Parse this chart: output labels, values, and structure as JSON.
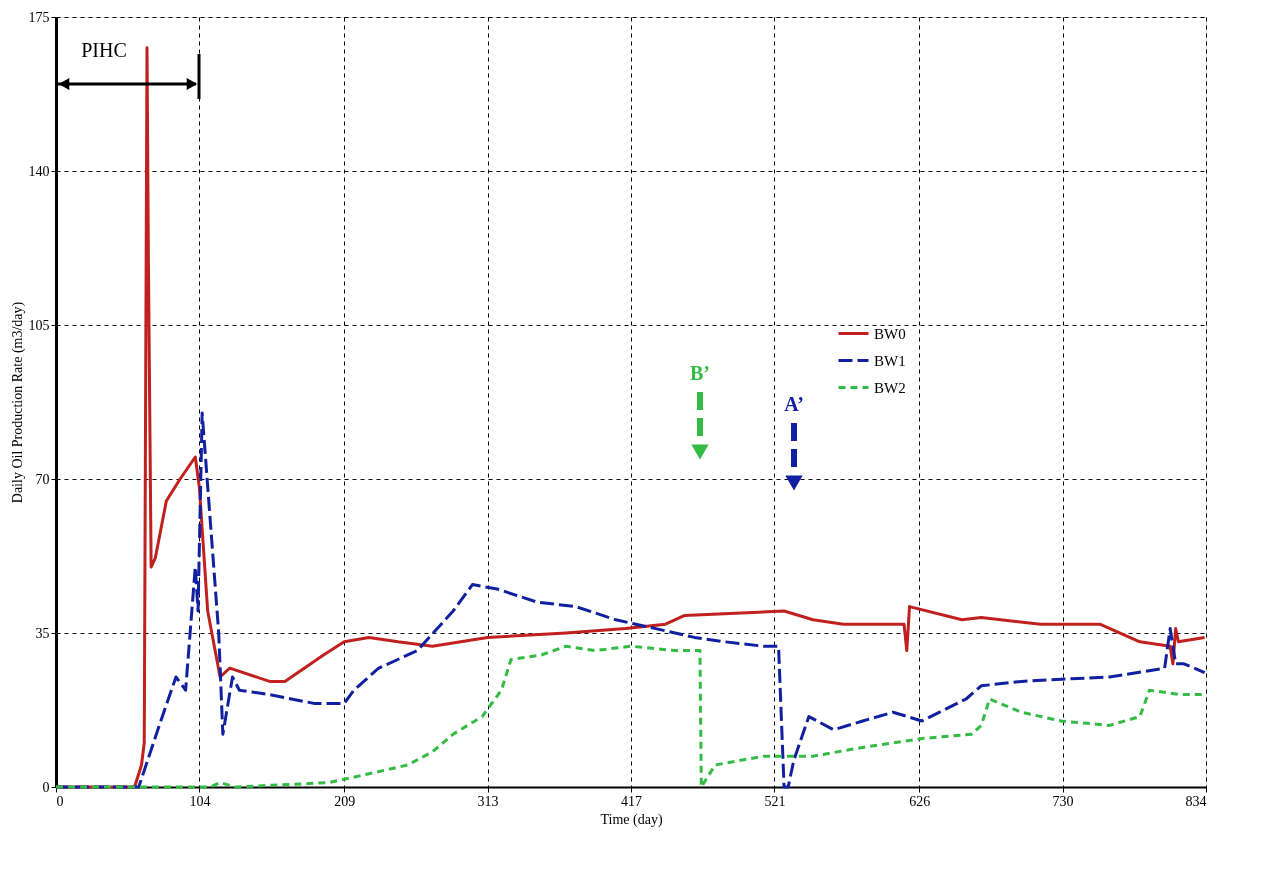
{
  "chart_data": {
    "type": "line",
    "xlabel": "Time (day)",
    "ylabel": "Daily Oil Production Rate (m3/day)",
    "xlim": [
      0,
      834
    ],
    "xticks": [
      0,
      104,
      209,
      313,
      417,
      521,
      626,
      730,
      834
    ],
    "ylim": [
      0,
      175
    ],
    "yticks": [
      0,
      35,
      70,
      105,
      140,
      175
    ],
    "grid": true,
    "legend": "top right",
    "series": [
      {
        "name": "BW0",
        "color": "#c0201e",
        "line_style": "solid",
        "x": [
          0,
          57,
          62,
          64,
          66,
          67,
          69,
          72,
          80,
          90,
          101,
          104,
          110,
          119,
          126,
          155,
          166,
          194,
          209,
          227,
          248,
          273,
          313,
          370,
          413,
          442,
          456,
          528,
          549,
          571,
          615,
          617,
          619,
          657,
          671,
          714,
          757,
          786,
          808,
          810,
          812,
          814,
          833
        ],
        "values": [
          0,
          0,
          5,
          10,
          168,
          120,
          50,
          52,
          65,
          70,
          75,
          68,
          40,
          25,
          27,
          24,
          24,
          30,
          33,
          34,
          33,
          32,
          34,
          35,
          36,
          37,
          39,
          40,
          38,
          37,
          37,
          31,
          41,
          38,
          38.5,
          37,
          37,
          33,
          32,
          28,
          36,
          33,
          34
        ]
      },
      {
        "name": "BW1",
        "color": "#1020a0",
        "line_style": "dashed",
        "x": [
          0,
          60,
          76,
          87,
          94,
          101,
          103,
          106,
          112,
          118,
          121,
          128,
          133,
          155,
          187,
          209,
          216,
          234,
          262,
          288,
          302,
          320,
          349,
          377,
          406,
          435,
          463,
          485,
          513,
          524,
          528,
          531,
          535,
          546,
          564,
          585,
          607,
          628,
          660,
          671,
          700,
          729,
          764,
          804,
          808,
          812,
          818,
          833
        ],
        "values": [
          0,
          0,
          15,
          25,
          22,
          50,
          40,
          85,
          60,
          35,
          12,
          25,
          22,
          21,
          19,
          19,
          22,
          27,
          31,
          40,
          46,
          45,
          42,
          41,
          38,
          36,
          34,
          33,
          32,
          32,
          0,
          0,
          6,
          16,
          13,
          15,
          17,
          15,
          20,
          23,
          24,
          24.5,
          25,
          27,
          36,
          28,
          28,
          26
        ]
      },
      {
        "name": "BW2",
        "color": "#33bb44",
        "line_style": "dotted",
        "x": [
          0,
          112,
          119,
          130,
          198,
          227,
          255,
          273,
          288,
          309,
          323,
          330,
          352,
          370,
          391,
          417,
          449,
          467,
          468,
          478,
          513,
          549,
          585,
          628,
          664,
          671,
          677,
          700,
          729,
          764,
          786,
          793,
          815,
          833
        ],
        "values": [
          0,
          0,
          1,
          0,
          1,
          3,
          5,
          8,
          12,
          16,
          22,
          29,
          30,
          32,
          31,
          32,
          31,
          31,
          0,
          5,
          7,
          7,
          9,
          11,
          12,
          14,
          20,
          17,
          15,
          14,
          16,
          22,
          21,
          21
        ]
      }
    ],
    "annotations": [
      "PIHC",
      "B’",
      "A’"
    ]
  }
}
